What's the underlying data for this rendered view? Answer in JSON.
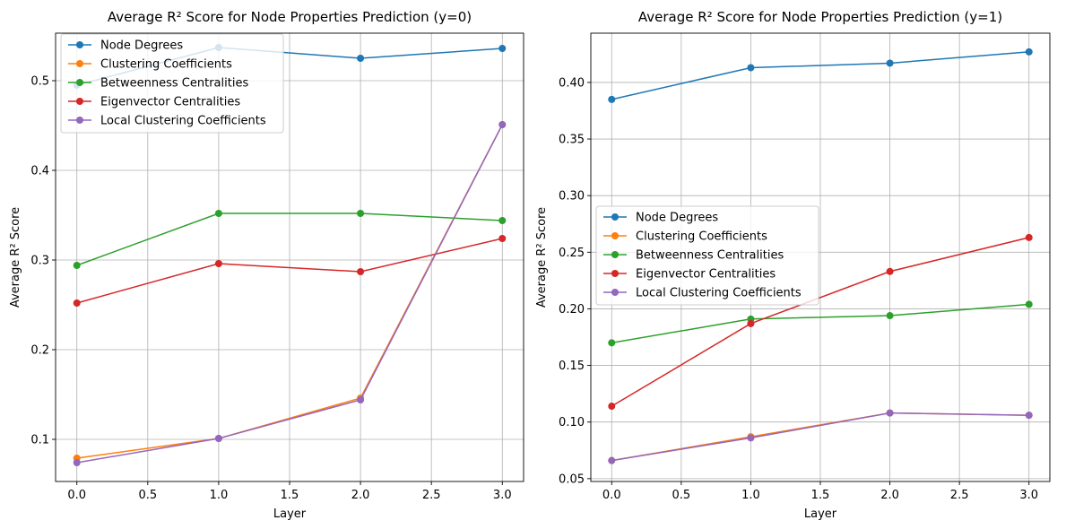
{
  "chart_data": [
    {
      "type": "line",
      "title": "Average R² Score for Node Properties Prediction (y=0)",
      "xlabel": "Layer",
      "ylabel": "Average R² Score",
      "x": [
        0,
        1,
        2,
        3
      ],
      "xlim": [
        -0.15,
        3.15
      ],
      "ylim": [
        0.053,
        0.553
      ],
      "xticks": [
        0.0,
        0.5,
        1.0,
        1.5,
        2.0,
        2.5,
        3.0
      ],
      "xtick_labels": [
        "0.0",
        "0.5",
        "1.0",
        "1.5",
        "2.0",
        "2.5",
        "3.0"
      ],
      "yticks": [
        0.1,
        0.2,
        0.3,
        0.4,
        0.5
      ],
      "ytick_labels": [
        "0.1",
        "0.2",
        "0.3",
        "0.4",
        "0.5"
      ],
      "grid": true,
      "legend_position": "upper left",
      "series": [
        {
          "name": "Node Degrees",
          "color": "#1f77b4",
          "values": [
            0.495,
            0.537,
            0.525,
            0.536
          ]
        },
        {
          "name": "Clustering Coefficients",
          "color": "#ff7f0e",
          "values": [
            0.079,
            0.101,
            0.146,
            0.451
          ]
        },
        {
          "name": "Betweenness Centralities",
          "color": "#2ca02c",
          "values": [
            0.294,
            0.352,
            0.352,
            0.344
          ]
        },
        {
          "name": "Eigenvector Centralities",
          "color": "#d62728",
          "values": [
            0.252,
            0.296,
            0.287,
            0.324
          ]
        },
        {
          "name": "Local Clustering Coefficients",
          "color": "#9467bd",
          "values": [
            0.074,
            0.101,
            0.144,
            0.451
          ]
        }
      ]
    },
    {
      "type": "line",
      "title": "Average R² Score for Node Properties Prediction (y=1)",
      "xlabel": "Layer",
      "ylabel": "Average R² Score",
      "x": [
        0,
        1,
        2,
        3
      ],
      "xlim": [
        -0.15,
        3.15
      ],
      "ylim": [
        0.0475,
        0.4435
      ],
      "xticks": [
        0.0,
        0.5,
        1.0,
        1.5,
        2.0,
        2.5,
        3.0
      ],
      "xtick_labels": [
        "0.0",
        "0.5",
        "1.0",
        "1.5",
        "2.0",
        "2.5",
        "3.0"
      ],
      "yticks": [
        0.05,
        0.1,
        0.15,
        0.2,
        0.25,
        0.3,
        0.35,
        0.4
      ],
      "ytick_labels": [
        "0.05",
        "0.10",
        "0.15",
        "0.20",
        "0.25",
        "0.30",
        "0.35",
        "0.40"
      ],
      "grid": true,
      "legend_position": "center left",
      "series": [
        {
          "name": "Node Degrees",
          "color": "#1f77b4",
          "values": [
            0.385,
            0.413,
            0.417,
            0.427
          ]
        },
        {
          "name": "Clustering Coefficients",
          "color": "#ff7f0e",
          "values": [
            0.066,
            0.087,
            0.108,
            0.106
          ]
        },
        {
          "name": "Betweenness Centralities",
          "color": "#2ca02c",
          "values": [
            0.17,
            0.191,
            0.194,
            0.204
          ]
        },
        {
          "name": "Eigenvector Centralities",
          "color": "#d62728",
          "values": [
            0.114,
            0.187,
            0.233,
            0.263
          ]
        },
        {
          "name": "Local Clustering Coefficients",
          "color": "#9467bd",
          "values": [
            0.066,
            0.086,
            0.108,
            0.106
          ]
        }
      ]
    }
  ]
}
